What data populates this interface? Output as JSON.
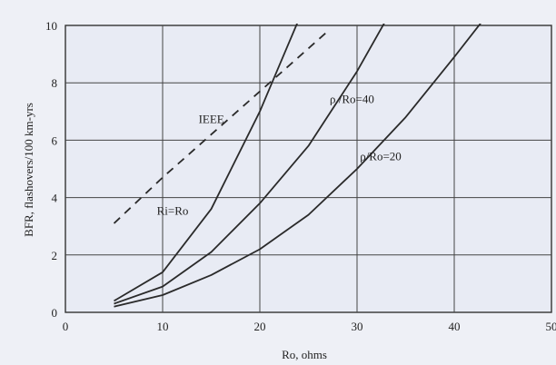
{
  "chart_data": {
    "type": "line",
    "title": "",
    "xlabel": "Ro, ohms",
    "ylabel": "BFR, flashovers/100 km-yrs",
    "xlim": [
      0,
      50
    ],
    "ylim": [
      0,
      10
    ],
    "x_ticks": [
      "0",
      "10",
      "20",
      "30",
      "40",
      "50"
    ],
    "y_ticks": [
      "0",
      "2",
      "4",
      "6",
      "8",
      "10"
    ],
    "grid": true,
    "legend": "none (curves labelled directly)",
    "series": [
      {
        "name": "IEEE",
        "style": "dashed",
        "x": [
          5,
          10,
          15,
          20,
          25,
          27
        ],
        "y": [
          3.1,
          4.7,
          6.2,
          7.7,
          9.2,
          9.8
        ]
      },
      {
        "name": "Ri=Ro",
        "style": "solid",
        "x": [
          5,
          10,
          15,
          20,
          22,
          24
        ],
        "y": [
          0.4,
          1.4,
          3.6,
          7.0,
          8.6,
          10.2
        ]
      },
      {
        "name": "ρ/Ro=40",
        "style": "solid",
        "x": [
          5,
          10,
          15,
          20,
          25,
          30,
          33
        ],
        "y": [
          0.3,
          0.9,
          2.1,
          3.8,
          5.8,
          8.4,
          10.2
        ]
      },
      {
        "name": "ρ/Ro=20",
        "style": "solid",
        "x": [
          5,
          10,
          15,
          20,
          25,
          30,
          35,
          40,
          43
        ],
        "y": [
          0.2,
          0.6,
          1.3,
          2.2,
          3.4,
          5.0,
          6.8,
          8.9,
          10.2
        ]
      }
    ],
    "annotations": [
      {
        "text": "IEEE",
        "x": 13.7,
        "y": 6.6
      },
      {
        "text": "Ri=Ro",
        "x": 9.4,
        "y": 3.4
      },
      {
        "text": "ρ /Ro=40",
        "x": 27.2,
        "y": 7.3
      },
      {
        "text": "ρ/Ro=20",
        "x": 30.3,
        "y": 5.3
      }
    ]
  }
}
